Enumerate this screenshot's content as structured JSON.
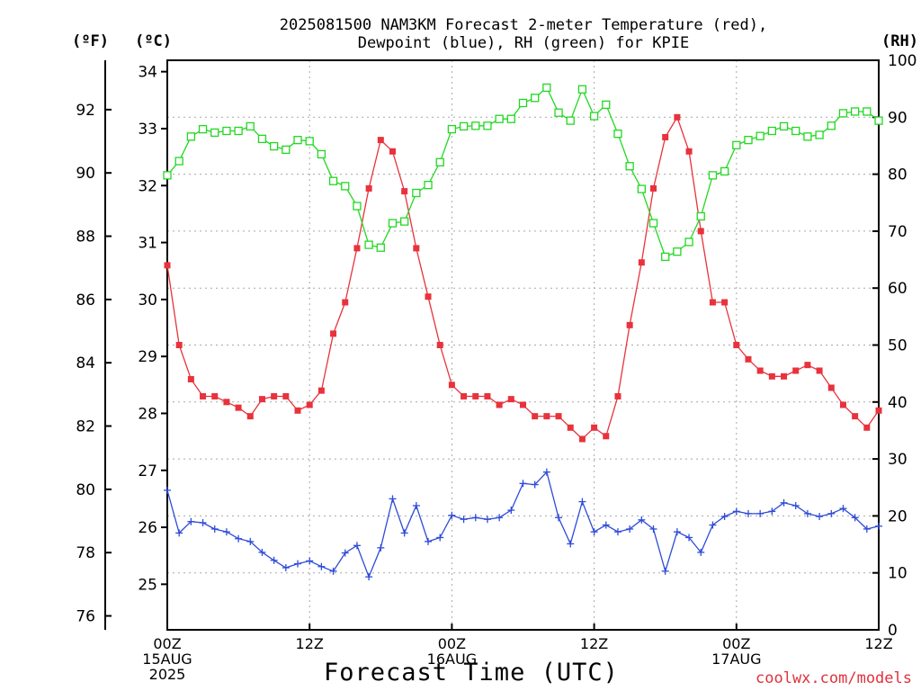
{
  "header": {
    "title_line1": "2025081500 NAM3KM Forecast 2-meter Temperature (red),",
    "title_line2": "Dewpoint (blue), RH (green) for KPIE"
  },
  "axis_units": {
    "f": "(ºF)",
    "c": "(ºC)",
    "rh": "(RH)"
  },
  "xlabel": "Forecast Time (UTC)",
  "credit": "coolwx.com/models",
  "x_ticks": [
    {
      "line1": "00Z",
      "line2": "15AUG",
      "line3": "2025",
      "hour": 0
    },
    {
      "line1": "12Z",
      "line2": "",
      "line3": "",
      "hour": 12
    },
    {
      "line1": "00Z",
      "line2": "16AUG",
      "line3": "",
      "hour": 24
    },
    {
      "line1": "12Z",
      "line2": "",
      "line3": "",
      "hour": 36
    },
    {
      "line1": "00Z",
      "line2": "17AUG",
      "line3": "",
      "hour": 48
    },
    {
      "line1": "12Z",
      "line2": "",
      "line3": "",
      "hour": 60
    }
  ],
  "chart_data": {
    "type": "line",
    "title": "2025081500 NAM3KM Forecast 2-meter Temperature (red), Dewpoint (blue), RH (green) for KPIE",
    "xlabel": "Forecast Time (UTC)",
    "x_unit": "forecast hour from 2025-08-15 00Z",
    "xlim": [
      0,
      60
    ],
    "x": [
      0,
      1,
      2,
      3,
      4,
      5,
      6,
      7,
      8,
      9,
      10,
      11,
      12,
      13,
      14,
      15,
      16,
      17,
      18,
      19,
      20,
      21,
      22,
      23,
      24,
      25,
      26,
      27,
      28,
      29,
      30,
      31,
      32,
      33,
      34,
      35,
      36,
      37,
      38,
      39,
      40,
      41,
      42,
      43,
      44,
      45,
      46,
      47,
      48,
      49,
      50,
      51,
      52,
      53,
      54,
      55,
      56,
      57,
      58,
      59,
      60
    ],
    "y_left_c": {
      "label": "(ºC)",
      "lim": [
        24.2,
        34.2
      ],
      "ticks": [
        25,
        26,
        27,
        28,
        29,
        30,
        31,
        32,
        33,
        34
      ]
    },
    "y_left_f": {
      "label": "(ºF)",
      "ticks": [
        76,
        78,
        80,
        82,
        84,
        86,
        88,
        90,
        92
      ]
    },
    "y_right": {
      "label": "(RH)",
      "lim": [
        0,
        100
      ],
      "ticks": [
        0,
        10,
        20,
        30,
        40,
        50,
        60,
        70,
        80,
        90,
        100
      ]
    },
    "grid": true,
    "series": [
      {
        "name": "Temperature (red)",
        "axis": "c",
        "color": "#e8323c",
        "marker": "filled-square",
        "values": [
          30.6,
          29.2,
          28.6,
          28.3,
          28.3,
          28.2,
          28.1,
          27.95,
          28.25,
          28.3,
          28.3,
          28.05,
          28.15,
          28.4,
          29.4,
          29.95,
          30.9,
          31.95,
          32.8,
          32.6,
          31.9,
          30.9,
          30.05,
          29.2,
          28.5,
          28.3,
          28.3,
          28.3,
          28.15,
          28.25,
          28.15,
          27.95,
          27.95,
          27.95,
          27.75,
          27.55,
          27.75,
          27.6,
          28.3,
          29.55,
          30.65,
          31.95,
          32.85,
          33.2,
          32.6,
          31.2,
          29.95,
          29.95,
          29.2,
          28.95,
          28.75,
          28.65,
          28.65,
          28.75,
          28.85,
          28.75,
          28.45,
          28.15,
          27.95,
          27.75,
          28.05
        ]
      },
      {
        "name": "Dewpoint (blue)",
        "axis": "c",
        "color": "#2e4bd8",
        "marker": "plus",
        "values": [
          26.65,
          25.9,
          26.1,
          26.08,
          25.97,
          25.92,
          25.8,
          25.75,
          25.56,
          25.42,
          25.29,
          25.36,
          25.41,
          25.31,
          25.23,
          25.55,
          25.68,
          25.13,
          25.64,
          26.5,
          25.9,
          26.38,
          25.75,
          25.82,
          26.21,
          26.14,
          26.17,
          26.14,
          26.17,
          26.3,
          26.77,
          26.75,
          26.97,
          26.17,
          25.71,
          26.45,
          25.92,
          26.04,
          25.92,
          25.97,
          26.13,
          25.97,
          25.23,
          25.92,
          25.82,
          25.56,
          26.04,
          26.19,
          26.28,
          26.24,
          26.24,
          26.28,
          26.43,
          26.38,
          26.24,
          26.19,
          26.24,
          26.33,
          26.17,
          25.97,
          26.02
        ]
      },
      {
        "name": "RH (green)",
        "axis": "rh",
        "color": "#22d822",
        "marker": "open-square",
        "values": [
          79.8,
          82.3,
          86.6,
          87.9,
          87.3,
          87.6,
          87.6,
          88.4,
          86.2,
          84.9,
          84.3,
          86.0,
          85.8,
          83.5,
          78.8,
          77.9,
          74.4,
          67.6,
          67.1,
          71.4,
          71.7,
          76.7,
          78.1,
          82.1,
          87.9,
          88.4,
          88.5,
          88.5,
          89.7,
          89.7,
          92.5,
          93.4,
          95.2,
          90.8,
          89.4,
          94.9,
          90.2,
          92.2,
          87.1,
          81.4,
          77.4,
          71.4,
          65.5,
          66.4,
          68.1,
          72.6,
          79.8,
          80.5,
          85.1,
          86.0,
          86.7,
          87.6,
          88.4,
          87.6,
          86.6,
          86.9,
          88.5,
          90.7,
          91.0,
          91.0,
          89.4
        ]
      }
    ]
  }
}
